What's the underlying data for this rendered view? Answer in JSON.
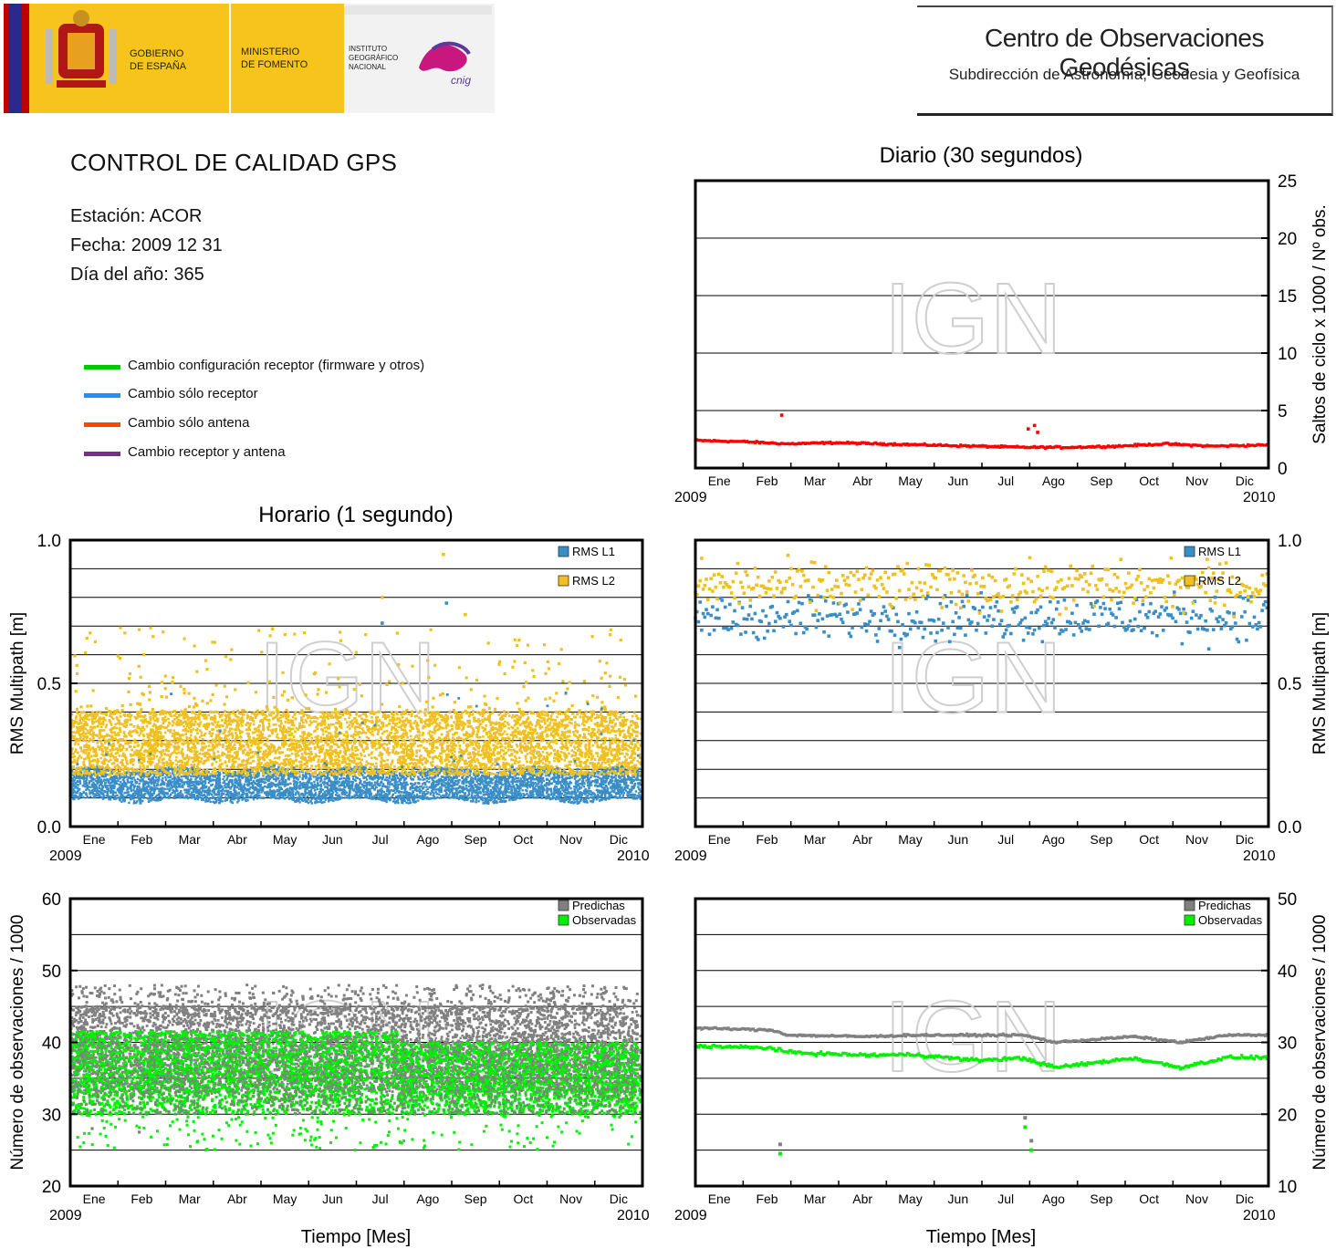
{
  "header": {
    "gov_line1": "GOBIERNO",
    "gov_line2": "DE ESPAÑA",
    "min_line1": "MINISTERIO",
    "min_line2": "DE FOMENTO",
    "ign_line1": "INSTITUTO",
    "ign_line2": "GEOGRÁFICO",
    "ign_line3": "NACIONAL",
    "cnig": "cnig",
    "center_title": "Centro de Observaciones Geodésicas",
    "center_subtitle": "Subdirección de Astronomía, Geodesia y Geofísica"
  },
  "report": {
    "title": "CONTROL DE CALIDAD GPS",
    "station": "Estación: ACOR",
    "date": "Fecha: 2009 12 31",
    "doy": "Día del año: 365"
  },
  "legend": {
    "items": [
      {
        "label": "Cambio configuración receptor (firmware y otros)",
        "color": "#00c800"
      },
      {
        "label": "Cambio sólo receptor",
        "color": "#1e90ff"
      },
      {
        "label": "Cambio sólo antena",
        "color": "#ff4500"
      },
      {
        "label": "Cambio receptor y antena",
        "color": "#7b2d8e"
      }
    ]
  },
  "section_titles": {
    "daily": "Diario (30 segundos)",
    "hourly": "Horario (1 segundo)"
  },
  "watermark": "IGN",
  "axes": {
    "months": [
      "Ene",
      "Feb",
      "Mar",
      "Abr",
      "May",
      "Jun",
      "Jul",
      "Ago",
      "Sep",
      "Oct",
      "Nov",
      "Dic"
    ],
    "year_start": "2009",
    "year_end": "2010",
    "xlabel": "Tiempo [Mes]"
  },
  "colors": {
    "l1": "#3a8ec8",
    "l2": "#f0c020",
    "predicted": "#808080",
    "observed": "#00f000",
    "slips": "#ff0000"
  },
  "chart_data": [
    {
      "id": "daily-cycle-slips",
      "type": "scatter",
      "title": "Diario (30 segundos)",
      "ylabel": "Saltos de ciclo x 1000 / Nº obs.",
      "ylim": [
        0,
        25
      ],
      "yticks": [
        0,
        5,
        10,
        15,
        20,
        25
      ],
      "x_unit": "day of year 2009",
      "series": [
        {
          "values_summary": "daily points 1-365, approx 2.4 in Jan decreasing to ~1.8 by Jul-Aug, ~1.9 through Dec",
          "x": [
            1,
            30,
            60,
            90,
            120,
            150,
            180,
            210,
            240,
            270,
            300,
            330,
            365
          ],
          "y": [
            2.4,
            2.3,
            2.1,
            2.2,
            2.1,
            2.0,
            1.9,
            1.8,
            1.8,
            1.9,
            2.1,
            1.9,
            2.0
          ],
          "outliers": [
            {
              "x": 56,
              "y": 4.6
            },
            {
              "x": 213,
              "y": 3.4
            },
            {
              "x": 217,
              "y": 3.7
            },
            {
              "x": 219,
              "y": 3.1
            }
          ]
        }
      ]
    },
    {
      "id": "hourly-multipath",
      "type": "scatter",
      "title": "Horario (1 segundo)",
      "ylabel": "RMS Multipath [m]",
      "ylim": [
        0.0,
        1.0
      ],
      "yticks": [
        0.0,
        0.5,
        1.0
      ],
      "series": [
        {
          "name": "RMS L1",
          "band": [
            0.09,
            0.2
          ]
        },
        {
          "name": "RMS L2",
          "band": [
            0.18,
            0.4
          ],
          "outliers": [
            {
              "x": 239,
              "y": 0.95
            },
            {
              "x": 200,
              "y": 0.8
            },
            {
              "x": 253,
              "y": 0.74
            },
            {
              "x": 130,
              "y": 0.69
            }
          ]
        }
      ]
    },
    {
      "id": "daily-multipath",
      "type": "scatter",
      "title": "",
      "ylabel": "RMS Multipath [m]",
      "ylim": [
        0.0,
        1.0
      ],
      "yticks": [
        0.0,
        0.5,
        1.0
      ],
      "series": [
        {
          "name": "RMS L1",
          "band": [
            0.6,
            0.85
          ]
        },
        {
          "name": "RMS L2",
          "band": [
            0.7,
            0.99
          ]
        }
      ]
    },
    {
      "id": "hourly-observations",
      "type": "scatter",
      "ylabel": "Número de observaciones / 1000",
      "ylim": [
        20,
        60
      ],
      "yticks": [
        20,
        30,
        40,
        50,
        60
      ],
      "series": [
        {
          "name": "Predichas",
          "band": [
            32,
            46
          ]
        },
        {
          "name": "Observadas",
          "band": [
            30,
            41
          ]
        }
      ]
    },
    {
      "id": "daily-observations",
      "type": "scatter",
      "ylabel": "Número de observaciones / 1000",
      "ylim": [
        10,
        50
      ],
      "yticks": [
        10,
        20,
        30,
        40,
        50
      ],
      "series": [
        {
          "name": "Predichas",
          "x": [
            1,
            50,
            60,
            110,
            140,
            180,
            210,
            230,
            280,
            310,
            340,
            365
          ],
          "y": [
            32,
            31.7,
            31,
            30.8,
            31,
            31,
            31,
            30,
            30.8,
            30,
            31,
            31
          ]
        },
        {
          "name": "Observadas",
          "x": [
            1,
            50,
            60,
            110,
            140,
            180,
            210,
            230,
            280,
            310,
            340,
            365
          ],
          "y": [
            29.5,
            29.2,
            28.6,
            28.2,
            28.3,
            27.5,
            27.8,
            26.5,
            27.8,
            26.5,
            27.9,
            27.9
          ],
          "outliers": [
            {
              "x": 55,
              "y": 14.5
            },
            {
              "x": 211,
              "y": 18.2
            },
            {
              "x": 215,
              "y": 15
            }
          ]
        }
      ]
    }
  ]
}
